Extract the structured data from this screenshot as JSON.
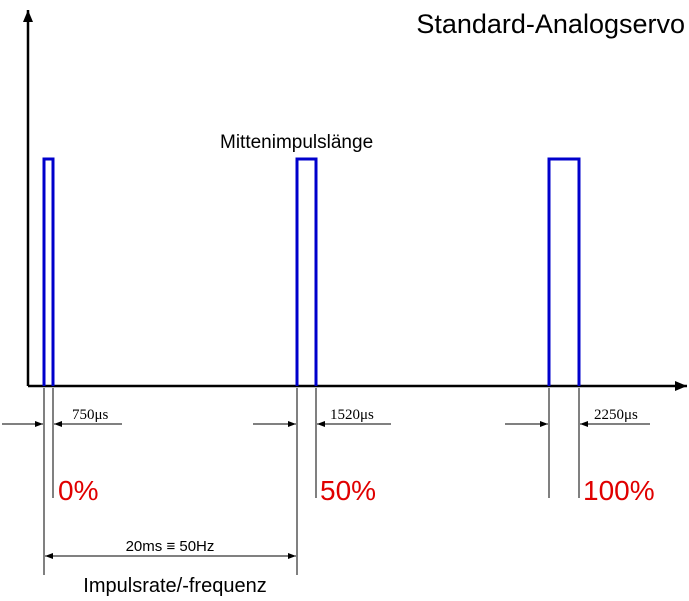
{
  "title": "Standard-Analogservo",
  "center_label": "Mittenimpulslänge",
  "pulses": [
    {
      "width_label": "750μs",
      "percent_label": "0%"
    },
    {
      "width_label": "1520μs",
      "percent_label": "50%"
    },
    {
      "width_label": "2250μs",
      "percent_label": "100%"
    }
  ],
  "period": {
    "label": "20ms ≡ 50Hz",
    "caption": "Impulsrate/-frequenz"
  },
  "colors": {
    "pulse": "#0000cc",
    "percent": "#e00000",
    "axis": "#000000"
  }
}
